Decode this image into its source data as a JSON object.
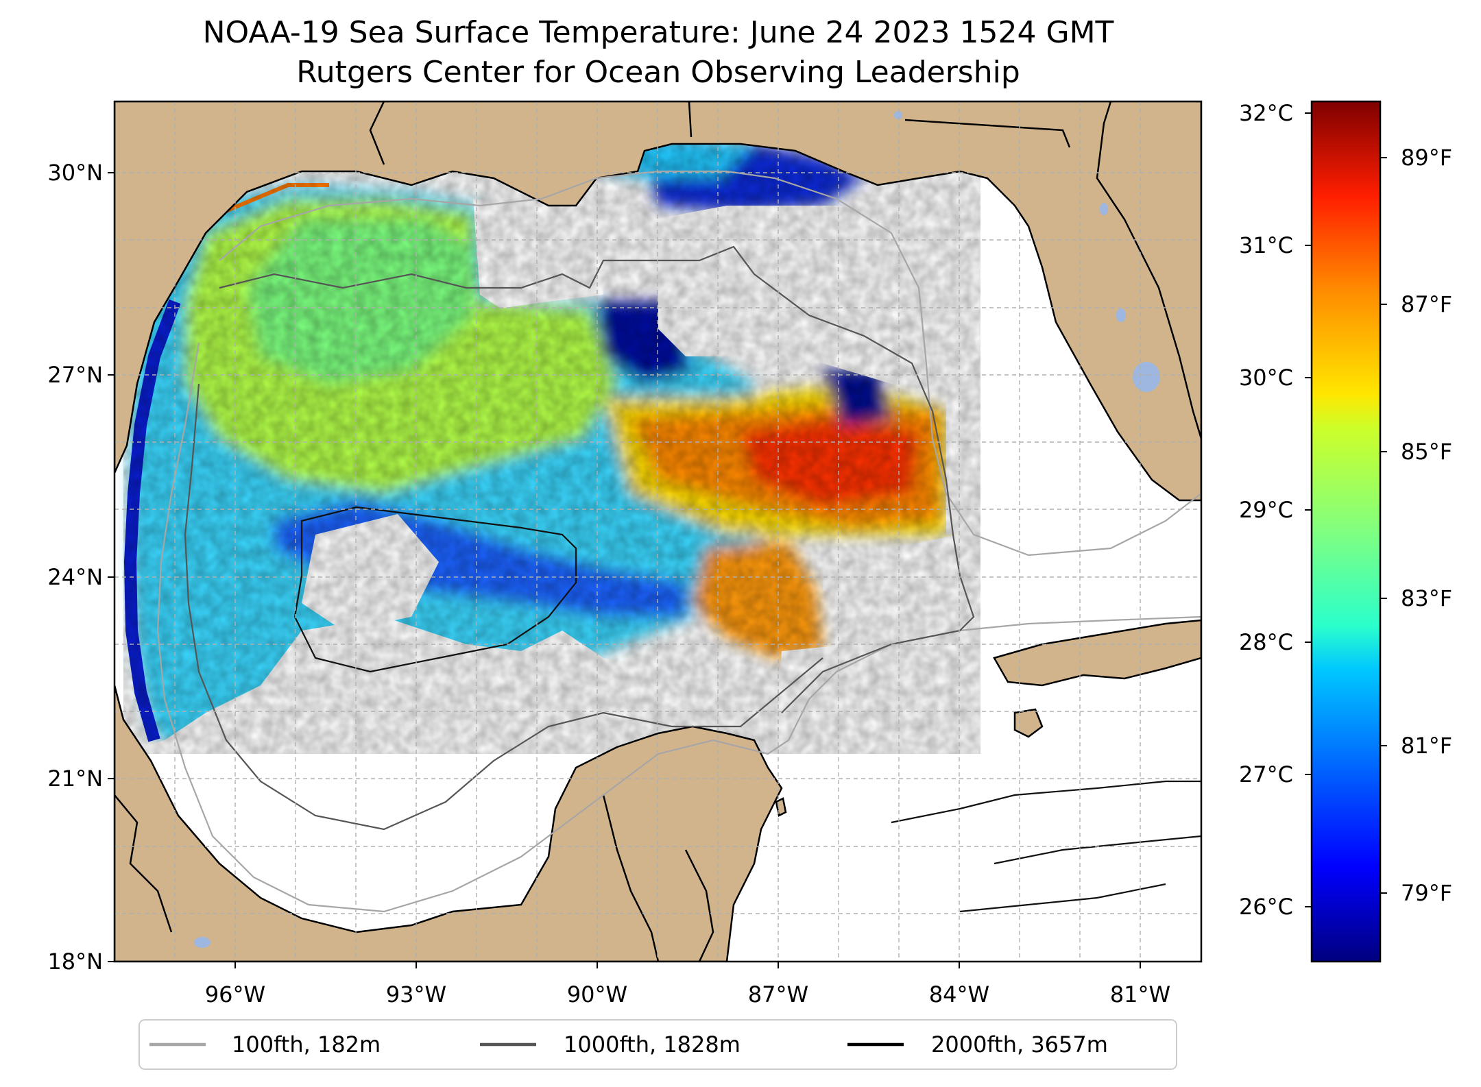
{
  "title": {
    "line1": "NOAA-19 Sea Surface Temperature: June 24 2023 1524 GMT",
    "line2": "Rutgers Center for Ocean Observing Leadership"
  },
  "map": {
    "region": "Gulf of Mexico",
    "lon_range": [
      -98.2,
      -80.2
    ],
    "lat_range": [
      18,
      31
    ],
    "lat_ticks": [
      "30°N",
      "27°N",
      "24°N",
      "21°N",
      "18°N"
    ],
    "lon_ticks": [
      "96°W",
      "93°W",
      "90°W",
      "87°W",
      "84°W",
      "81°W"
    ],
    "gridlines": true,
    "colors": {
      "land": "#d2b48c",
      "water_bodies": "#9db7e0",
      "no_data": "#ffffff",
      "grid": "#b0b0b0"
    }
  },
  "colorbar": {
    "colormap": "jet",
    "celsius_ticks": [
      "32°C",
      "31°C",
      "30°C",
      "29°C",
      "28°C",
      "27°C",
      "26°C"
    ],
    "fahrenheit_ticks": [
      "89°F",
      "87°F",
      "85°F",
      "83°F",
      "81°F",
      "79°F"
    ],
    "min_c": 25.6,
    "max_c": 32.1
  },
  "legend": {
    "placement": "bottom",
    "items": [
      {
        "label": "100fth, 182m",
        "color": "#a6a6a6"
      },
      {
        "label": "1000fth, 1828m",
        "color": "#555555"
      },
      {
        "label": "2000fth, 3657m",
        "color": "#000000"
      }
    ]
  }
}
